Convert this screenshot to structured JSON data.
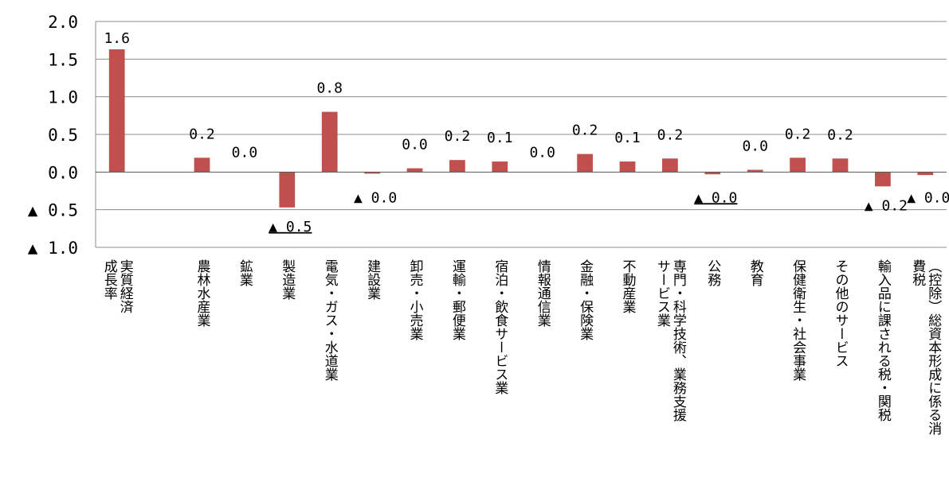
{
  "chart_data": {
    "type": "bar",
    "title": "",
    "xlabel": "",
    "ylabel": "",
    "ylim": [
      -1.0,
      2.0
    ],
    "grid": true,
    "legend": "none",
    "negative_marker": "▲",
    "y_ticks": [
      {
        "value": 2.0,
        "label": "2.0"
      },
      {
        "value": 1.5,
        "label": "1.5"
      },
      {
        "value": 1.0,
        "label": "1.0"
      },
      {
        "value": 0.5,
        "label": "0.5"
      },
      {
        "value": 0.0,
        "label": "0.0"
      },
      {
        "value": -0.5,
        "label": "▲ 0.5"
      },
      {
        "value": -1.0,
        "label": "▲ 1.0"
      }
    ],
    "bar_color": "#c0504d",
    "categories": [
      [
        "実質経済",
        "成長率"
      ],
      [
        "農林水産業"
      ],
      [
        "鉱業"
      ],
      [
        "製造業"
      ],
      [
        "電気・ガス・水道業"
      ],
      [
        "建設業"
      ],
      [
        "卸売・小売業"
      ],
      [
        "運輸・郵便業"
      ],
      [
        "宿泊・飲食サービス業"
      ],
      [
        "情報通信業"
      ],
      [
        "金融・保険業"
      ],
      [
        "不動産業"
      ],
      [
        "専門・科学技術、業務支援",
        "サービス業"
      ],
      [
        "公務"
      ],
      [
        "教育"
      ],
      [
        "保健衛生・社会事業"
      ],
      [
        "その他のサービス"
      ],
      [
        "輸入品に課される税・関税"
      ],
      [
        "（控除）総資本形成に係る消",
        "費税"
      ]
    ],
    "slots": [
      0,
      2,
      3,
      4,
      5,
      6,
      7,
      8,
      9,
      10,
      11,
      12,
      13,
      14,
      15,
      16,
      17,
      18,
      19
    ],
    "slot_count": 20,
    "values": [
      1.63,
      0.19,
      0.0,
      -0.47,
      0.8,
      -0.02,
      0.05,
      0.16,
      0.14,
      0.0,
      0.24,
      0.14,
      0.18,
      -0.03,
      0.03,
      0.19,
      0.18,
      -0.19,
      -0.04
    ],
    "data_labels": [
      "1.6",
      "0.2",
      "0.0",
      "▲ 0.5",
      "0.8",
      "▲ 0.0",
      "0.0",
      "0.2",
      "0.1",
      "0.0",
      "0.2",
      "0.1",
      "0.2",
      "▲ 0.0",
      "0.0",
      "0.2",
      "0.2",
      "▲ 0.2",
      "▲ 0.0"
    ],
    "underlined_labels": [
      3,
      13
    ]
  }
}
